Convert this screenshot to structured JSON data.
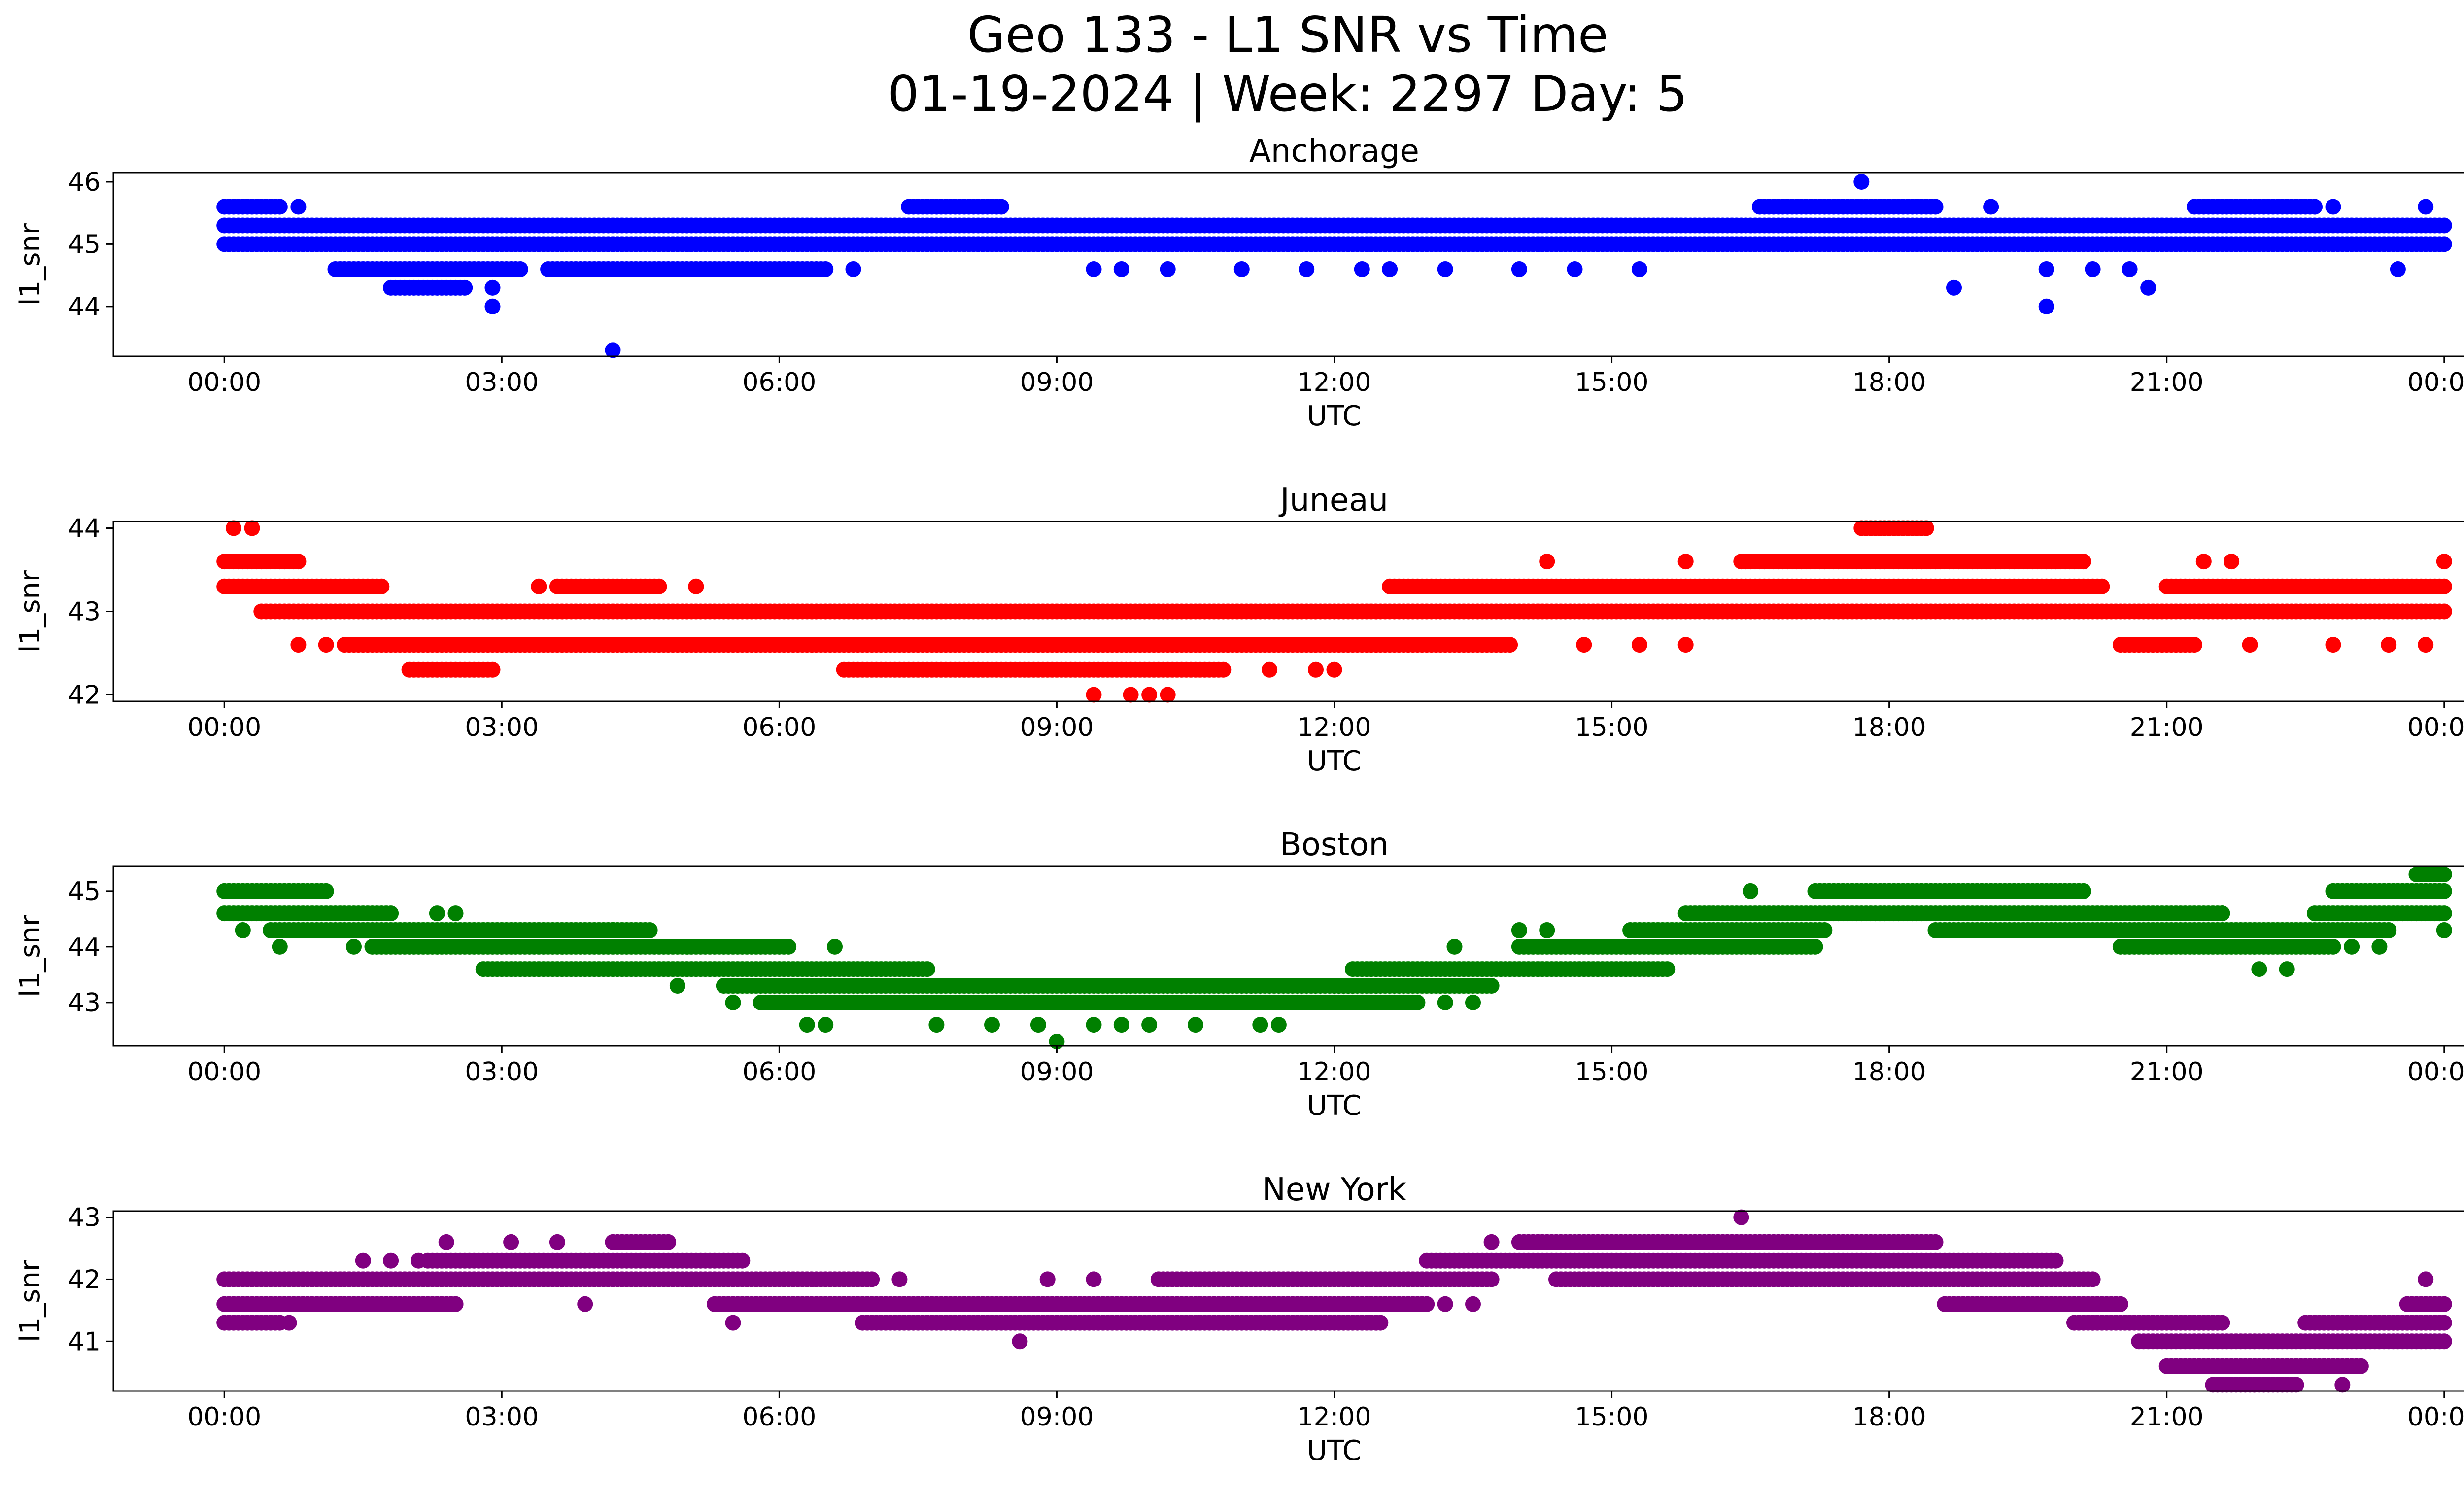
{
  "figure": {
    "title_line1": "Geo 133 - L1 SNR vs Time",
    "title_line2": "01-19-2024 | Week: 2297 Day: 5"
  },
  "chart_data": [
    {
      "type": "scatter",
      "title": "Anchorage",
      "xlabel": "UTC",
      "ylabel": "l1_snr",
      "color": "#0000ff",
      "xlim_hours": [
        -1.2,
        25.2
      ],
      "ylim": [
        43.2,
        46.15
      ],
      "xticks": [
        "00:00",
        "03:00",
        "06:00",
        "09:00",
        "12:00",
        "15:00",
        "18:00",
        "21:00",
        "00:00"
      ],
      "yticks": [
        44,
        45,
        46
      ],
      "bands": [
        {
          "y": 45.3,
          "from": 0.0,
          "to": 24.0
        },
        {
          "y": 45.0,
          "from": 0.0,
          "to": 24.0
        },
        {
          "y": 45.6,
          "from": 0.0,
          "to": 0.6
        },
        {
          "y": 45.6,
          "from": 7.4,
          "to": 8.4
        },
        {
          "y": 45.6,
          "from": 16.6,
          "to": 18.5
        },
        {
          "y": 45.6,
          "from": 21.3,
          "to": 22.6
        },
        {
          "y": 44.6,
          "from": 1.2,
          "to": 3.2
        },
        {
          "y": 44.6,
          "from": 3.5,
          "to": 6.5
        },
        {
          "y": 44.3,
          "from": 1.8,
          "to": 2.6
        }
      ],
      "points": [
        {
          "x": 0.8,
          "y": 45.6
        },
        {
          "x": 2.9,
          "y": 44.0
        },
        {
          "x": 2.9,
          "y": 44.3
        },
        {
          "x": 4.2,
          "y": 43.3
        },
        {
          "x": 6.8,
          "y": 44.6
        },
        {
          "x": 9.4,
          "y": 44.6
        },
        {
          "x": 9.7,
          "y": 44.6
        },
        {
          "x": 10.2,
          "y": 44.6
        },
        {
          "x": 11.0,
          "y": 44.6
        },
        {
          "x": 11.7,
          "y": 44.6
        },
        {
          "x": 12.3,
          "y": 44.6
        },
        {
          "x": 12.6,
          "y": 44.6
        },
        {
          "x": 13.2,
          "y": 44.6
        },
        {
          "x": 14.0,
          "y": 44.6
        },
        {
          "x": 14.6,
          "y": 44.6
        },
        {
          "x": 15.3,
          "y": 44.6
        },
        {
          "x": 17.7,
          "y": 46.0
        },
        {
          "x": 18.7,
          "y": 44.3
        },
        {
          "x": 19.1,
          "y": 45.6
        },
        {
          "x": 19.7,
          "y": 44.0
        },
        {
          "x": 19.7,
          "y": 44.6
        },
        {
          "x": 20.2,
          "y": 44.6
        },
        {
          "x": 20.6,
          "y": 44.6
        },
        {
          "x": 20.8,
          "y": 44.3
        },
        {
          "x": 22.8,
          "y": 45.6
        },
        {
          "x": 23.5,
          "y": 44.6
        },
        {
          "x": 23.8,
          "y": 45.6
        }
      ]
    },
    {
      "type": "scatter",
      "title": "Juneau",
      "xlabel": "UTC",
      "ylabel": "l1_snr",
      "color": "#ff0000",
      "xlim_hours": [
        -1.2,
        25.2
      ],
      "ylim": [
        41.92,
        44.08
      ],
      "xticks": [
        "00:00",
        "03:00",
        "06:00",
        "09:00",
        "12:00",
        "15:00",
        "18:00",
        "21:00",
        "00:00"
      ],
      "yticks": [
        42,
        43,
        44
      ],
      "bands": [
        {
          "y": 43.6,
          "from": 0.0,
          "to": 0.8
        },
        {
          "y": 43.3,
          "from": 0.0,
          "to": 1.7
        },
        {
          "y": 43.0,
          "from": 0.4,
          "to": 24.0
        },
        {
          "y": 42.6,
          "from": 1.3,
          "to": 13.9
        },
        {
          "y": 42.3,
          "from": 2.0,
          "to": 2.9
        },
        {
          "y": 42.3,
          "from": 6.7,
          "to": 10.8
        },
        {
          "y": 43.3,
          "from": 3.6,
          "to": 4.7
        },
        {
          "y": 43.3,
          "from": 12.6,
          "to": 20.3
        },
        {
          "y": 43.3,
          "from": 21.0,
          "to": 24.0
        },
        {
          "y": 43.6,
          "from": 16.4,
          "to": 20.1
        },
        {
          "y": 44.0,
          "from": 17.7,
          "to": 18.4
        },
        {
          "y": 42.6,
          "from": 20.5,
          "to": 21.3
        }
      ],
      "points": [
        {
          "x": 0.1,
          "y": 44.0
        },
        {
          "x": 0.3,
          "y": 44.0
        },
        {
          "x": 0.8,
          "y": 42.6
        },
        {
          "x": 1.1,
          "y": 42.6
        },
        {
          "x": 3.4,
          "y": 43.3
        },
        {
          "x": 5.1,
          "y": 43.3
        },
        {
          "x": 9.4,
          "y": 42.0
        },
        {
          "x": 9.8,
          "y": 42.0
        },
        {
          "x": 10.0,
          "y": 42.0
        },
        {
          "x": 10.2,
          "y": 42.0
        },
        {
          "x": 11.3,
          "y": 42.3
        },
        {
          "x": 11.8,
          "y": 42.3
        },
        {
          "x": 12.0,
          "y": 42.3
        },
        {
          "x": 14.3,
          "y": 43.6
        },
        {
          "x": 14.7,
          "y": 42.6
        },
        {
          "x": 15.3,
          "y": 42.6
        },
        {
          "x": 15.8,
          "y": 42.6
        },
        {
          "x": 15.8,
          "y": 43.6
        },
        {
          "x": 21.4,
          "y": 43.6
        },
        {
          "x": 21.7,
          "y": 43.6
        },
        {
          "x": 21.9,
          "y": 42.6
        },
        {
          "x": 22.8,
          "y": 42.6
        },
        {
          "x": 23.4,
          "y": 42.6
        },
        {
          "x": 23.8,
          "y": 42.6
        },
        {
          "x": 24.0,
          "y": 43.6
        }
      ]
    },
    {
      "type": "scatter",
      "title": "Boston",
      "xlabel": "UTC",
      "ylabel": "l1_snr",
      "color": "#008000",
      "xlim_hours": [
        -1.2,
        25.2
      ],
      "ylim": [
        42.22,
        45.45
      ],
      "xticks": [
        "00:00",
        "03:00",
        "06:00",
        "09:00",
        "12:00",
        "15:00",
        "18:00",
        "21:00",
        "00:00"
      ],
      "yticks": [
        43,
        44,
        45
      ],
      "bands": [
        {
          "y": 45.0,
          "from": 0.0,
          "to": 1.1
        },
        {
          "y": 44.6,
          "from": 0.0,
          "to": 1.8
        },
        {
          "y": 44.3,
          "from": 0.5,
          "to": 4.6
        },
        {
          "y": 44.0,
          "from": 1.6,
          "to": 6.1
        },
        {
          "y": 43.6,
          "from": 2.8,
          "to": 7.6
        },
        {
          "y": 43.3,
          "from": 5.4,
          "to": 12.2
        },
        {
          "y": 43.0,
          "from": 5.8,
          "to": 12.9
        },
        {
          "y": 43.3,
          "from": 12.0,
          "to": 13.7
        },
        {
          "y": 43.6,
          "from": 12.2,
          "to": 15.6
        },
        {
          "y": 44.0,
          "from": 14.0,
          "to": 17.2
        },
        {
          "y": 44.3,
          "from": 15.2,
          "to": 17.3
        },
        {
          "y": 44.6,
          "from": 15.8,
          "to": 21.6
        },
        {
          "y": 45.0,
          "from": 17.2,
          "to": 20.1
        },
        {
          "y": 44.3,
          "from": 18.5,
          "to": 23.4
        },
        {
          "y": 44.0,
          "from": 20.5,
          "to": 22.8
        },
        {
          "y": 44.6,
          "from": 22.6,
          "to": 24.0
        },
        {
          "y": 45.0,
          "from": 22.8,
          "to": 24.0
        },
        {
          "y": 45.3,
          "from": 23.7,
          "to": 24.0
        }
      ],
      "points": [
        {
          "x": 0.2,
          "y": 44.3
        },
        {
          "x": 0.6,
          "y": 44.0
        },
        {
          "x": 1.4,
          "y": 44.0
        },
        {
          "x": 2.3,
          "y": 44.6
        },
        {
          "x": 2.5,
          "y": 44.6
        },
        {
          "x": 4.2,
          "y": 44.3
        },
        {
          "x": 4.9,
          "y": 43.3
        },
        {
          "x": 5.5,
          "y": 43.0
        },
        {
          "x": 6.3,
          "y": 42.6
        },
        {
          "x": 6.5,
          "y": 42.6
        },
        {
          "x": 6.6,
          "y": 44.0
        },
        {
          "x": 7.7,
          "y": 42.6
        },
        {
          "x": 8.3,
          "y": 42.6
        },
        {
          "x": 8.8,
          "y": 42.6
        },
        {
          "x": 9.0,
          "y": 42.3
        },
        {
          "x": 9.4,
          "y": 42.6
        },
        {
          "x": 9.7,
          "y": 42.6
        },
        {
          "x": 10.0,
          "y": 42.6
        },
        {
          "x": 10.5,
          "y": 42.6
        },
        {
          "x": 11.2,
          "y": 42.6
        },
        {
          "x": 11.4,
          "y": 42.6
        },
        {
          "x": 13.2,
          "y": 43.0
        },
        {
          "x": 13.5,
          "y": 43.0
        },
        {
          "x": 13.3,
          "y": 44.0
        },
        {
          "x": 14.0,
          "y": 44.3
        },
        {
          "x": 14.3,
          "y": 44.3
        },
        {
          "x": 16.5,
          "y": 45.0
        },
        {
          "x": 21.6,
          "y": 44.6
        },
        {
          "x": 22.0,
          "y": 43.6
        },
        {
          "x": 22.3,
          "y": 43.6
        },
        {
          "x": 23.0,
          "y": 44.0
        },
        {
          "x": 23.3,
          "y": 44.0
        },
        {
          "x": 24.0,
          "y": 44.3
        }
      ]
    },
    {
      "type": "scatter",
      "title": "New York",
      "xlabel": "UTC",
      "ylabel": "l1_snr",
      "color": "#800080",
      "xlim_hours": [
        -1.2,
        25.2
      ],
      "ylim": [
        40.2,
        43.1
      ],
      "xticks": [
        "00:00",
        "03:00",
        "06:00",
        "09:00",
        "12:00",
        "15:00",
        "18:00",
        "21:00",
        "00:00"
      ],
      "yticks": [
        41,
        42,
        43
      ],
      "bands": [
        {
          "y": 42.0,
          "from": 0.0,
          "to": 7.0
        },
        {
          "y": 41.6,
          "from": 0.0,
          "to": 2.5
        },
        {
          "y": 41.3,
          "from": 0.0,
          "to": 0.6
        },
        {
          "y": 42.3,
          "from": 2.2,
          "to": 5.6
        },
        {
          "y": 42.6,
          "from": 4.2,
          "to": 4.8
        },
        {
          "y": 41.6,
          "from": 5.3,
          "to": 13.0
        },
        {
          "y": 41.3,
          "from": 6.9,
          "to": 12.5
        },
        {
          "y": 42.0,
          "from": 10.1,
          "to": 13.7
        },
        {
          "y": 42.3,
          "from": 13.0,
          "to": 19.8
        },
        {
          "y": 42.6,
          "from": 14.0,
          "to": 18.5
        },
        {
          "y": 42.0,
          "from": 14.4,
          "to": 20.2
        },
        {
          "y": 41.6,
          "from": 18.6,
          "to": 20.5
        },
        {
          "y": 41.3,
          "from": 20.0,
          "to": 21.6
        },
        {
          "y": 41.0,
          "from": 20.7,
          "to": 24.0
        },
        {
          "y": 40.6,
          "from": 21.0,
          "to": 23.1
        },
        {
          "y": 40.3,
          "from": 21.5,
          "to": 22.4
        },
        {
          "y": 41.3,
          "from": 22.5,
          "to": 24.0
        },
        {
          "y": 41.6,
          "from": 23.6,
          "to": 24.0
        }
      ],
      "points": [
        {
          "x": 0.7,
          "y": 41.3
        },
        {
          "x": 1.5,
          "y": 42.3
        },
        {
          "x": 1.8,
          "y": 42.3
        },
        {
          "x": 2.1,
          "y": 42.3
        },
        {
          "x": 2.4,
          "y": 42.6
        },
        {
          "x": 2.5,
          "y": 41.6
        },
        {
          "x": 3.1,
          "y": 42.6
        },
        {
          "x": 3.6,
          "y": 42.6
        },
        {
          "x": 3.9,
          "y": 41.6
        },
        {
          "x": 5.5,
          "y": 41.3
        },
        {
          "x": 7.3,
          "y": 42.0
        },
        {
          "x": 8.6,
          "y": 41.0
        },
        {
          "x": 8.9,
          "y": 42.0
        },
        {
          "x": 9.4,
          "y": 42.0
        },
        {
          "x": 12.5,
          "y": 42.0
        },
        {
          "x": 13.2,
          "y": 41.6
        },
        {
          "x": 13.5,
          "y": 41.6
        },
        {
          "x": 13.7,
          "y": 42.6
        },
        {
          "x": 16.4,
          "y": 43.0
        },
        {
          "x": 20.2,
          "y": 41.3
        },
        {
          "x": 22.9,
          "y": 40.3
        },
        {
          "x": 23.8,
          "y": 42.0
        }
      ]
    }
  ]
}
